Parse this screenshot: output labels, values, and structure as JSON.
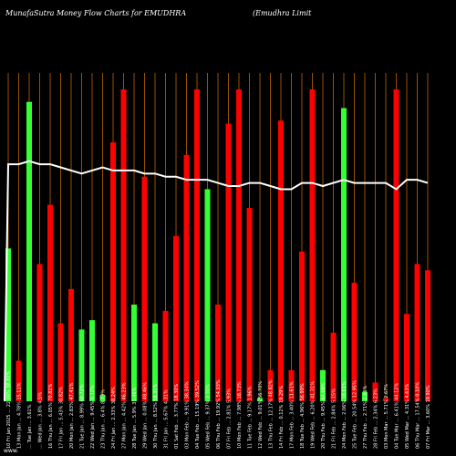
{
  "chart_data": {
    "type": "bar",
    "title_left": "MunafaSutra  Money Flow  Charts for EMUDHRA",
    "title_right": "(Emudhra  Limit",
    "footer_left": "www.",
    "overlay_line_color": "#ffffff",
    "grid_color": "#c06400",
    "colors": {
      "up": "#33ff33",
      "down": "#ff0000"
    },
    "ylim": [
      0,
      100
    ],
    "categories": [
      "10 Fri Jan 2025 … 22.00% 38.82%",
      "13 Mon Jan … 4.78% 15.11%",
      "… Tue Jan … 3.61%",
      "… Wed Jan … 3.8% 4.5%",
      "16 Thu Jan … 6.05% 70.82%",
      "17 Fri Jan … 5.43% 30.82%",
      "20 Mon Jan … 2.83% 47.41%",
      "21 Tue Jan … 8.99% 60.72%",
      "22 Wed Jan … 9.45% 6.12%",
      "23 Thu Jan … 6.4% 8.73%",
      "24 Fri Jan … 2.33% 38.24%",
      "27 Mon Jan … 4.42% 46.23%",
      "28 Tue Jan … 5.9% 31.46%",
      "29 Wed Jan … 0.08% 48.46%",
      "30 Thu Jan … 8.52% 58.31%",
      "31 Fri Jan … 5.67% 4.31%",
      "01 Sat Feb … 3.77% 18.30%",
      "03 Mon Feb … 9.91% 38.34%",
      "04 Tue Feb … 15.19% 39.52%",
      "05 Wed Feb … 9.37% 2.31%",
      "06 Thu Feb … 19.92% 54.03%",
      "07 Fri Feb … 2.81% 5.93%",
      "10 Mon Feb … 7.98% 18.73%",
      "11 Tue Feb … 9.17% 1.96%",
      "12 Wed Feb … 9.01% 56.70%",
      "13 Thu Feb … 12.17% 48.82%",
      "14 Fri Feb … 0.12% 19.29%",
      "17 Mon Feb … 3.40% 11.61%",
      "18 Tue Feb … 4.96% 56.99%",
      "19 Wed Feb … 6.20% 41.31%",
      "20 Thu Feb … 9.45% 64.08%",
      "21 Fri Feb … 2.84% 5.15%",
      "24 Mon Feb … 2.06% 18.61%",
      "25 Tue Feb … 20.54% 12.95%",
      "27 Thu Feb … 2.71% 2.06%",
      "28 Fri Feb … 2.34% 6.23%",
      "03 Mon Mar … 5.71% 2.67%",
      "04 Tue Mar … 6.41% 44.12%",
      "05 Wed Mar … 4.31% 4.63%",
      "06 Thu Mar … 17.54% 0.10%",
      "07 Fri Mar … 3.60% 19.90%"
    ],
    "series": [
      {
        "values": [
          49,
          13,
          96,
          44,
          63,
          25,
          36,
          23,
          26,
          2,
          83,
          100,
          31,
          72,
          25,
          29,
          53,
          79,
          100,
          68,
          31,
          89,
          100,
          62,
          1,
          10,
          90,
          10,
          48,
          100,
          10,
          22,
          94,
          38,
          3,
          6,
          1,
          100,
          28,
          44,
          42
        ],
        "directions": [
          "up",
          "down",
          "up",
          "down",
          "down",
          "down",
          "down",
          "up",
          "up",
          "up",
          "down",
          "down",
          "up",
          "down",
          "up",
          "down",
          "down",
          "down",
          "down",
          "up",
          "down",
          "down",
          "down",
          "down",
          "up",
          "down",
          "down",
          "down",
          "down",
          "down",
          "up",
          "down",
          "up",
          "down",
          "up",
          "down",
          "down",
          "down",
          "down",
          "down",
          "down"
        ]
      }
    ],
    "overlay_line": [
      76,
      76,
      77,
      76,
      76,
      75,
      74,
      73,
      74,
      75,
      74,
      74,
      74,
      73,
      73,
      72,
      72,
      71,
      71,
      71,
      70,
      69,
      69,
      70,
      70,
      69,
      68,
      68,
      70,
      70,
      69,
      70,
      71,
      70,
      70,
      70,
      70,
      68,
      71,
      71,
      70
    ]
  }
}
